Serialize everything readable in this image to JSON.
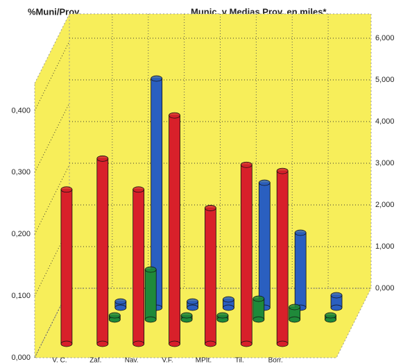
{
  "chart_data": {
    "type": "bar3d",
    "title": "%Muni/Prov.",
    "subtitle": "Munic. y Medias Prov. en miles*.",
    "categories": [
      "V. C.",
      "Zaf.",
      "Nav.",
      "V.F.",
      "MPIt.",
      "Til.",
      "Borr.",
      null
    ],
    "series": [
      {
        "color": "#d8202a",
        "values": [
          0.25,
          0.3,
          0.25,
          0.37,
          0.22,
          0.29,
          0.28,
          null
        ]
      },
      {
        "color": "#1f8a3a",
        "axis": "y2",
        "values": [
          null,
          100,
          1200,
          100,
          100,
          500,
          300,
          100
        ]
      },
      {
        "color": "#2a5fc0",
        "axis": "y2",
        "values": [
          null,
          150,
          5500,
          150,
          200,
          3000,
          1800,
          300
        ]
      }
    ],
    "ylim": [
      0,
      0.45
    ],
    "yticks": [
      {
        "value": 0,
        "label": "0,000"
      },
      {
        "value": 0.1,
        "label": "0,100"
      },
      {
        "value": 0.2,
        "label": "0,200"
      },
      {
        "value": 0.3,
        "label": "0,300"
      },
      {
        "value": 0.4,
        "label": "0,400"
      }
    ],
    "y2lim": [
      0,
      6000
    ],
    "y2ticks": [
      {
        "value": 0,
        "label": "0,000"
      },
      {
        "value": 1000,
        "label": "1,000"
      },
      {
        "value": 2000,
        "label": "2,000"
      },
      {
        "value": 3000,
        "label": "3,000"
      },
      {
        "value": 4000,
        "label": "4,000"
      },
      {
        "value": 5000,
        "label": "5,000"
      },
      {
        "value": 6000,
        "label": "6,000"
      }
    ],
    "grid": true,
    "wall_color": "#f7ee5a"
  }
}
